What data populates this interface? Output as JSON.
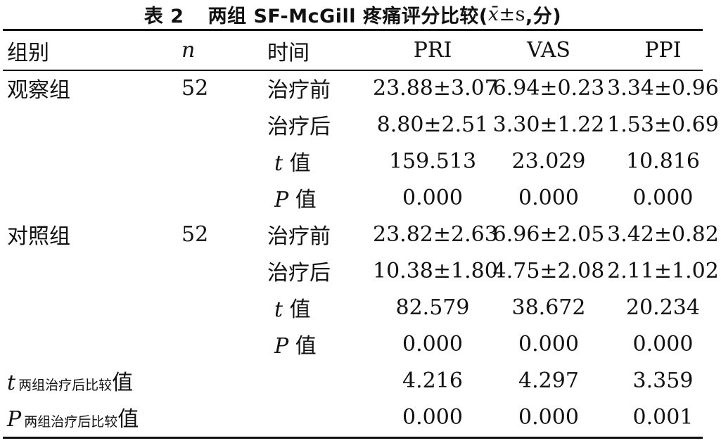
{
  "title": {
    "label": "表 2",
    "text": "两组 SF-McGill 疼痛评分比较(",
    "stat_x": "x̄",
    "stat_rest": "±s",
    "suffix": ",分)"
  },
  "headers": {
    "group": "组别",
    "n": "n",
    "time": "时间",
    "pri": "PRI",
    "vas": "VAS",
    "ppi": "PPI"
  },
  "groups": [
    {
      "name": "观察组",
      "n": "52",
      "rows": [
        {
          "time": "治疗前",
          "pri": "23.88±3.07",
          "vas": "6.94±0.23",
          "ppi": "3.34±0.96"
        },
        {
          "time": "治疗后",
          "pri": "8.80±2.51",
          "vas": "3.30±1.22",
          "ppi": "1.53±0.69"
        },
        {
          "time_stat": "t",
          "time_suffix": "值",
          "pri": "159.513",
          "vas": "23.029",
          "ppi": "10.816"
        },
        {
          "time_stat": "P",
          "time_suffix": "值",
          "pri": "0.000",
          "vas": "0.000",
          "ppi": "0.000"
        }
      ]
    },
    {
      "name": "对照组",
      "n": "52",
      "rows": [
        {
          "time": "治疗前",
          "pri": "23.82±2.63",
          "vas": "6.96±2.05",
          "ppi": "3.42±0.82"
        },
        {
          "time": "治疗后",
          "pri": "10.38±1.80",
          "vas": "4.75±2.08",
          "ppi": "2.11±1.02"
        },
        {
          "time_stat": "t",
          "time_suffix": "值",
          "pri": "82.579",
          "vas": "38.672",
          "ppi": "20.234"
        },
        {
          "time_stat": "P",
          "time_suffix": "值",
          "pri": "0.000",
          "vas": "0.000",
          "ppi": "0.000"
        }
      ]
    }
  ],
  "comparison": [
    {
      "stat": "t",
      "sub": "两组治疗后比较",
      "suffix": "值",
      "pri": "4.216",
      "vas": "4.297",
      "ppi": "3.359"
    },
    {
      "stat": "P",
      "sub": "两组治疗后比较",
      "suffix": "值",
      "pri": "0.000",
      "vas": "0.000",
      "ppi": "0.001"
    }
  ]
}
